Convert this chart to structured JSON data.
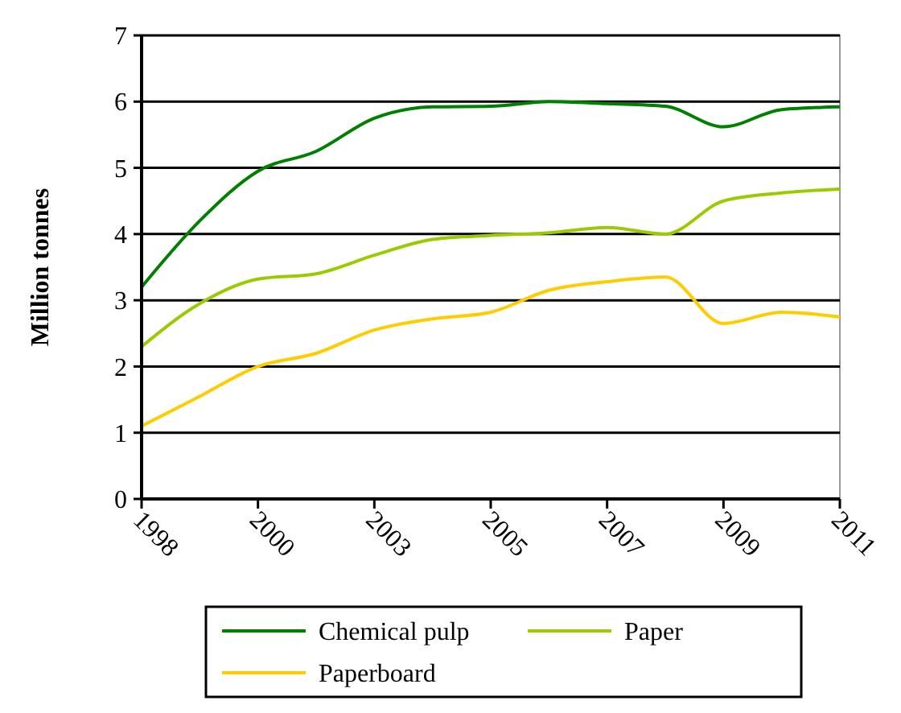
{
  "chart_data": {
    "type": "line",
    "ylabel": "Million tonnes",
    "categories": [
      "1998",
      null,
      "2000",
      null,
      "2003",
      null,
      "2005",
      null,
      "2007",
      null,
      "2009",
      null,
      "2011"
    ],
    "ylim": [
      0,
      7
    ],
    "yticks": [
      0,
      1,
      2,
      3,
      4,
      5,
      6,
      7
    ],
    "grid": "y",
    "legend": "bottom",
    "marker": "none",
    "line_style": "solid",
    "series": [
      {
        "name": "Chemical pulp",
        "color": "#008000",
        "values": [
          3.2,
          4.2,
          4.95,
          5.25,
          5.75,
          5.92,
          5.93,
          6.0,
          5.97,
          5.93,
          5.62,
          5.88,
          5.92
        ]
      },
      {
        "name": "Paper",
        "color": "#99cc00",
        "values": [
          2.3,
          2.95,
          3.32,
          3.4,
          3.68,
          3.92,
          3.98,
          4.02,
          4.1,
          4.0,
          4.5,
          4.62,
          4.68
        ]
      },
      {
        "name": "Paperboard",
        "color": "#ffcc00",
        "values": [
          1.1,
          1.55,
          2.0,
          2.2,
          2.55,
          2.72,
          2.82,
          3.15,
          3.28,
          3.35,
          2.65,
          2.82,
          2.75
        ]
      }
    ]
  }
}
